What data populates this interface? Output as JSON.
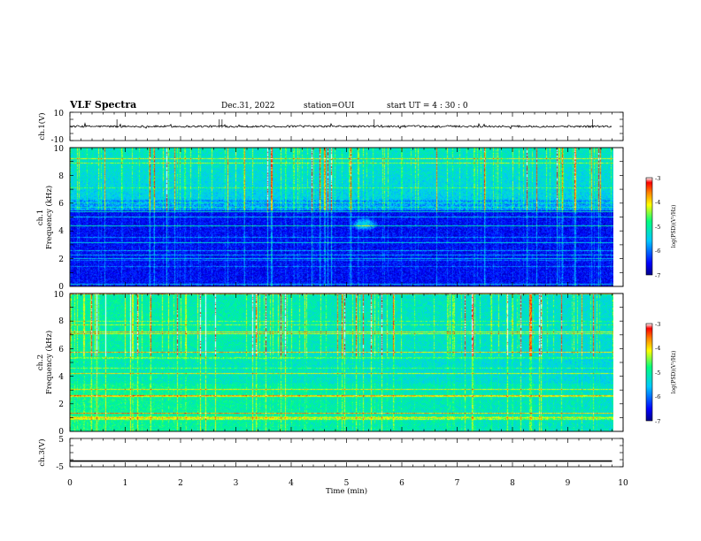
{
  "header": {
    "title": "VLF Spectra",
    "date": "Dec.31, 2022",
    "station": "station=OUI",
    "start": "start UT =  4 : 30 : 0"
  },
  "panels": {
    "ch1v": {
      "label": "ch.1(V)",
      "ytick_top": "10",
      "ytick_bottom": "-10"
    },
    "spec1": {
      "label_line1": "ch.1",
      "label_line2": "Frequency (kHz)",
      "yticks": [
        "0",
        "2",
        "4",
        "6",
        "8",
        "10"
      ]
    },
    "spec2": {
      "label_line1": "ch.2",
      "label_line2": "Frequency (kHz)",
      "yticks": [
        "0",
        "2",
        "4",
        "6",
        "8",
        "10"
      ]
    },
    "ch3v": {
      "label": "ch.3(V)",
      "ytick_top": "5",
      "ytick_bottom": "-5"
    }
  },
  "colorbar1": {
    "ticks": [
      "-3",
      "-4",
      "-5",
      "-6",
      "-7"
    ],
    "label": "log(PSD)(V²/Hz)"
  },
  "colorbar2": {
    "ticks": [
      "-3",
      "-4",
      "-5",
      "-6",
      "-7"
    ],
    "label": "log(PSD)(V²/Hz)"
  },
  "xaxis": {
    "ticks": [
      "0",
      "1",
      "2",
      "3",
      "4",
      "5",
      "6",
      "7",
      "8",
      "9",
      "10"
    ],
    "label": "Time (min)"
  },
  "colors": {
    "colormap": [
      "#00008b",
      "#0000ff",
      "#00c8ff",
      "#00ff80",
      "#ffff00",
      "#ff8000",
      "#ff0000",
      "#ffffff"
    ]
  },
  "chart_data": [
    {
      "type": "line",
      "name_label": "ch.1(V)",
      "ylim": [
        -10,
        10
      ],
      "xlim": [
        0,
        10
      ],
      "xlabel": "Time (min)",
      "baseline": 0
    },
    {
      "type": "heatmap",
      "name_label": "ch.1",
      "ylabel": "Frequency (kHz)",
      "ylim": [
        0,
        10
      ],
      "xlim": [
        0,
        10
      ],
      "colorbar_range": [
        -7,
        -3
      ]
    },
    {
      "type": "heatmap",
      "name_label": "ch.2",
      "ylabel": "Frequency (kHz)",
      "ylim": [
        0,
        10
      ],
      "xlim": [
        0,
        10
      ],
      "colorbar_range": [
        -7,
        -3
      ]
    },
    {
      "type": "line",
      "name_label": "ch.3(V)",
      "ylim": [
        -5,
        5
      ],
      "xlim": [
        0,
        10
      ],
      "xlabel": "Time (min)",
      "baseline": -3
    }
  ]
}
